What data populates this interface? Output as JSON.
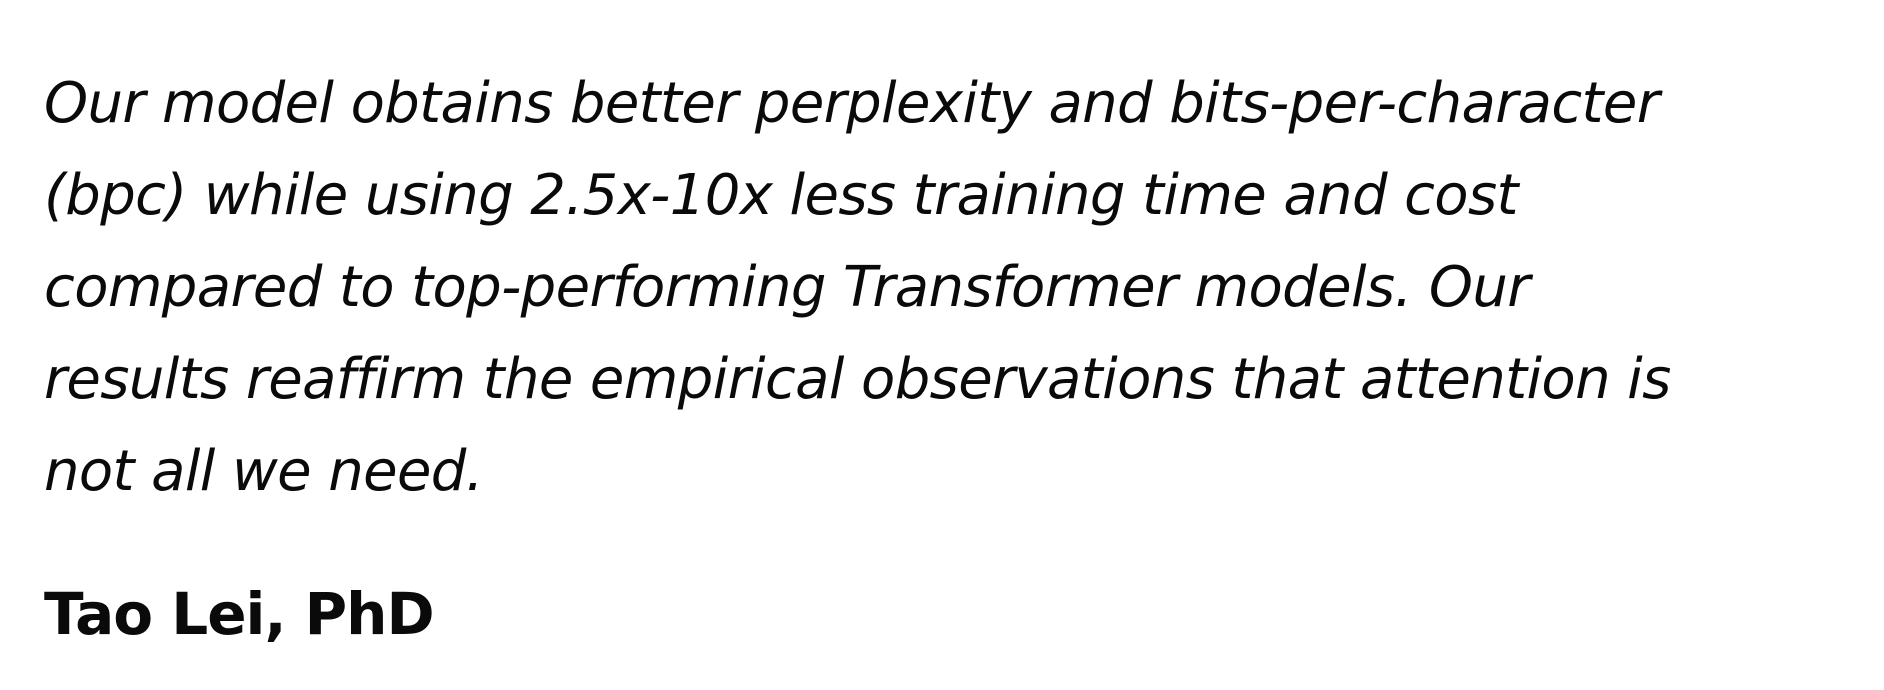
{
  "quote": {
    "lines": [
      "Our model obtains better perplexity and bits-per-character",
      "(bpc) while using 2.5x-10x less training time and cost",
      "compared to top-performing Transformer models. Our",
      "results reaffirm the empirical observations that attention is",
      "not all we need."
    ],
    "author": "Tao Lei, PhD"
  },
  "colors": {
    "background": "#ffffff",
    "text": "#0a0a0a"
  }
}
